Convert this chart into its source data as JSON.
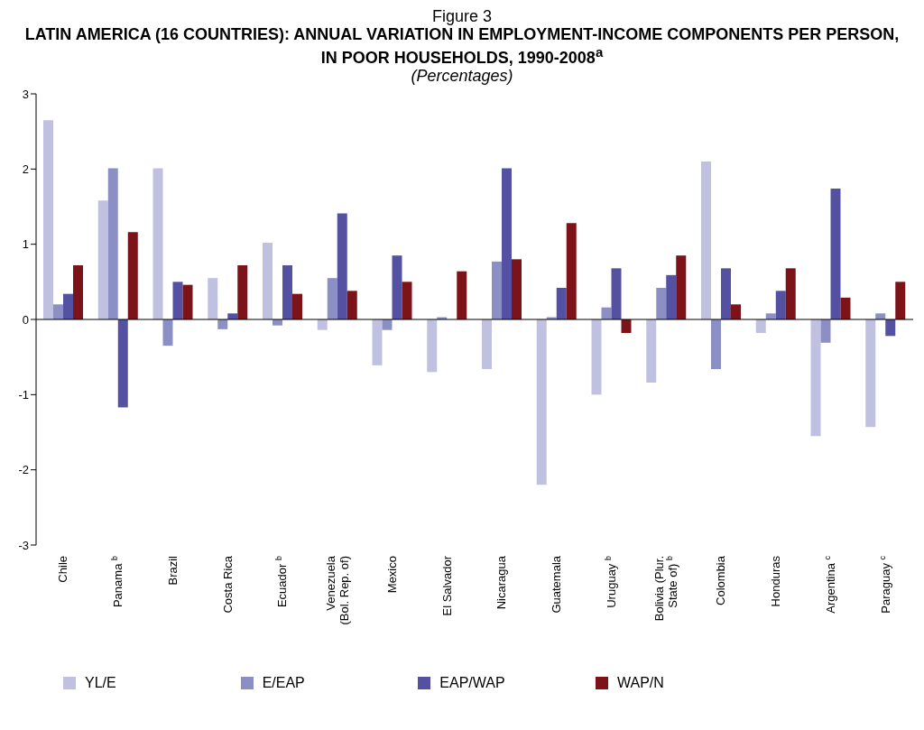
{
  "chart_data": {
    "type": "bar",
    "title": "LATIN AMERICA (16 COUNTRIES): ANNUAL VARIATION IN EMPLOYMENT-INCOME COMPONENTS PER PERSON, IN POOR HOUSEHOLDS, 1990-2008$^{a}$",
    "subtitle": "(Percentages)",
    "annotations": [
      "Figure 3"
    ],
    "categories": [
      "Chile",
      "Panama $^{b}$",
      "Brazil",
      "Costa Rica",
      "Ecuador $^{b}$",
      "Venezuela\n(Bol. Rep. of)",
      "Mexico",
      "El Salvador",
      "Nicaragua",
      "Guatemala",
      "Uruguay $^{b}$",
      "Bolivia (Plur.\nState of) $^{b}$",
      "Colombia",
      "Honduras",
      "Argentina $^{c}$",
      "Paraguay $^{c}$"
    ],
    "series": [
      {
        "name": "YL/E",
        "color": "#c0c0e0",
        "values": [
          2.65,
          1.58,
          2.01,
          0.55,
          1.02,
          -0.14,
          -0.61,
          -0.7,
          -0.66,
          -2.2,
          -1.0,
          -0.84,
          2.1,
          -0.18,
          -1.55,
          -1.43
        ]
      },
      {
        "name": "E/EAP",
        "color": "#8c8fc4",
        "values": [
          0.2,
          2.01,
          -0.35,
          -0.13,
          -0.08,
          0.55,
          -0.14,
          0.03,
          0.77,
          0.03,
          0.16,
          0.42,
          -0.66,
          0.08,
          -0.31,
          0.08
        ]
      },
      {
        "name": "EAP/WAP",
        "color": "#5451a3",
        "values": [
          0.34,
          -1.17,
          0.5,
          0.08,
          0.72,
          1.41,
          0.85,
          0,
          2.01,
          0.42,
          0.68,
          0.59,
          0.68,
          0.38,
          1.74,
          -0.22
        ]
      },
      {
        "name": "WAP/N",
        "color": "#7b1318",
        "values": [
          0.72,
          1.16,
          0.46,
          0.72,
          0.34,
          0.38,
          0.5,
          0.64,
          0.8,
          1.28,
          -0.18,
          0.85,
          0.2,
          0.68,
          0.29,
          0.5
        ]
      }
    ],
    "ylim": [
      -3,
      3
    ],
    "yticks": [
      -3,
      -2,
      -1,
      0,
      1,
      2,
      3
    ],
    "legend": "bottom"
  }
}
